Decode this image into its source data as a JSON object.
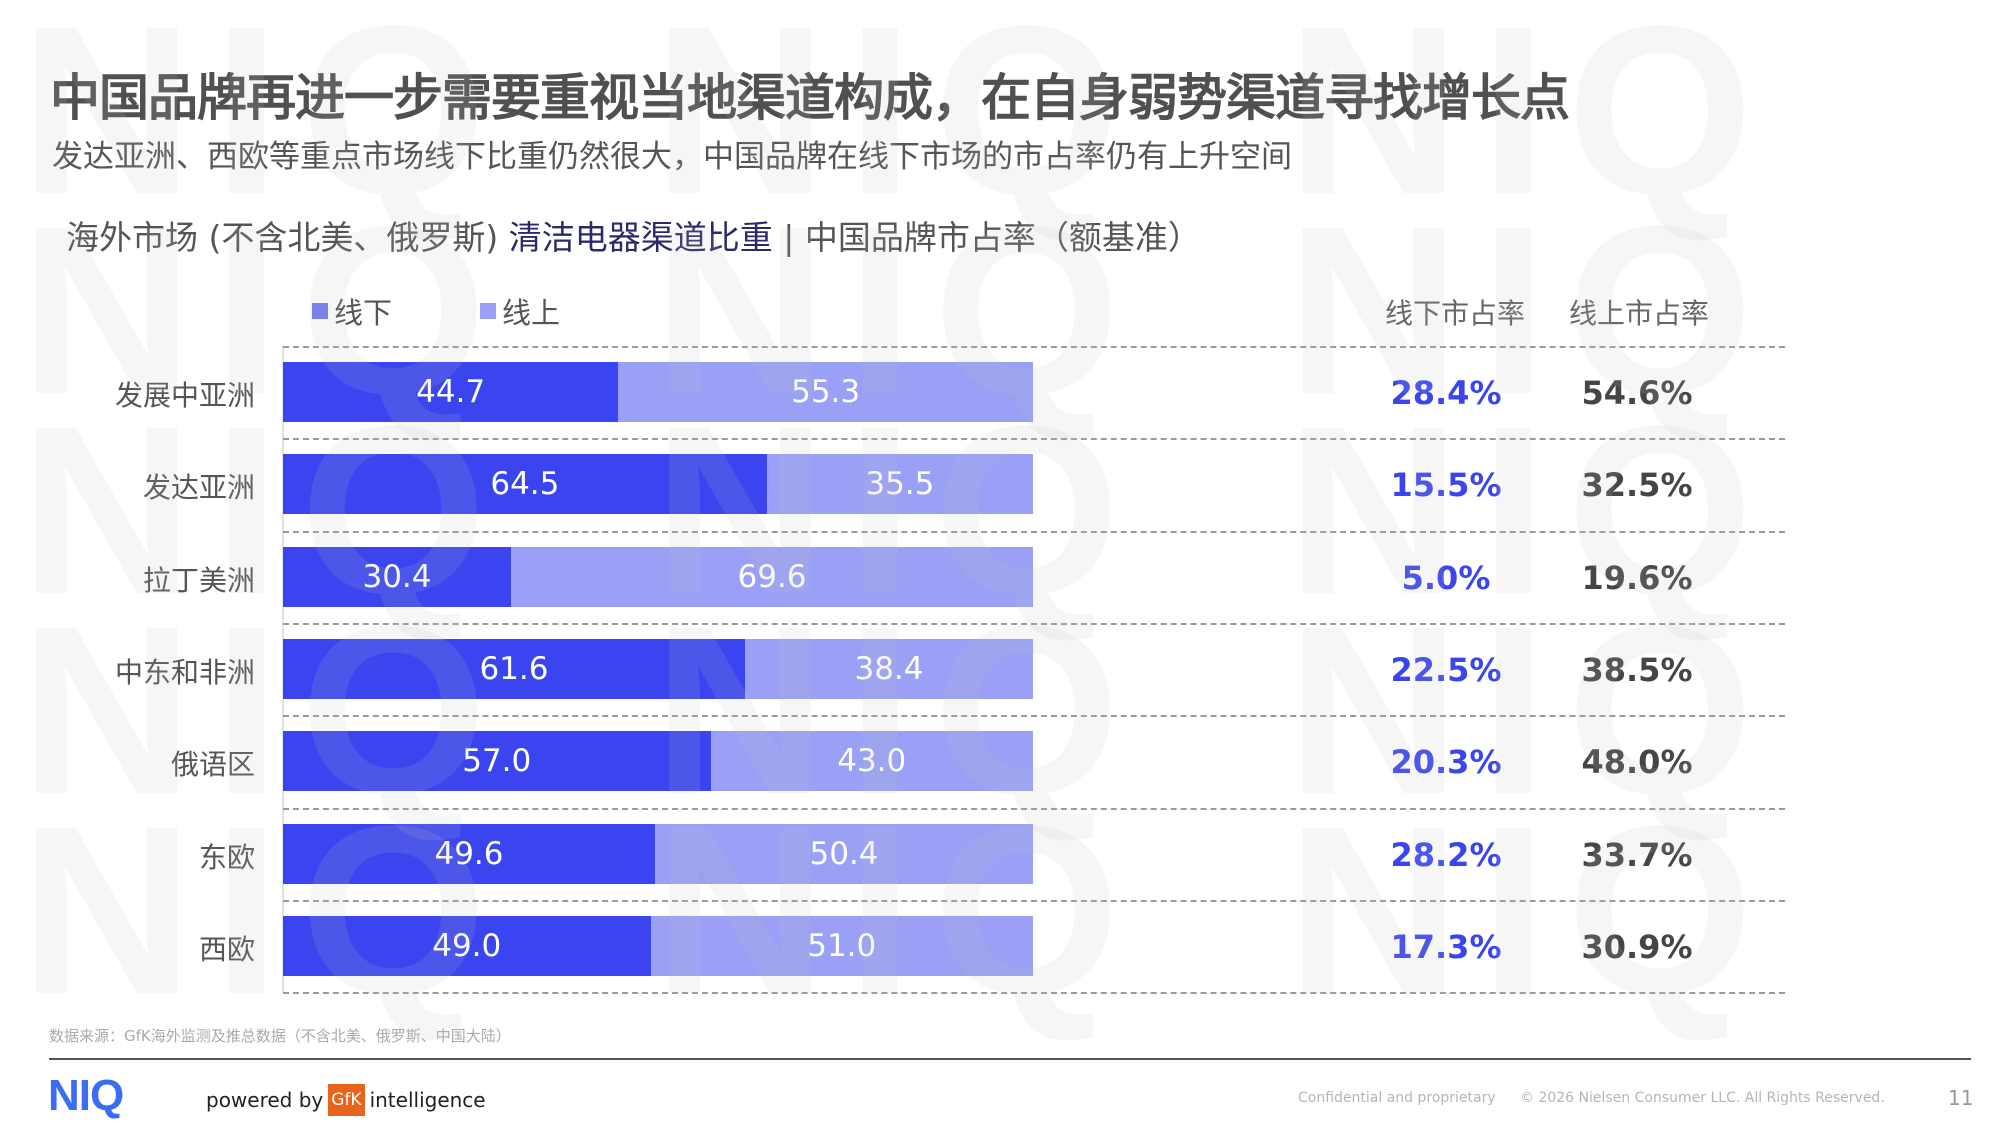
{
  "title": "中国品牌再进一步需要重视当地渠道构成，在自身弱势渠道寻找增长点",
  "subtitle": "发达亚洲、西欧等重点市场线下比重仍然很大，中国品牌在线下市场的市占率仍有上升空间",
  "chart_heading": {
    "part1": "海外市场 (不含北美、俄罗斯) ",
    "part2": "清洁电器渠道比重",
    "part3": " | 中国品牌市占率（额基准）"
  },
  "colors": {
    "offline": "#3a45ef",
    "online": "#9aa0f5",
    "offline_pct": "#3a45ef",
    "online_pct": "#454545"
  },
  "chart_data": {
    "type": "bar",
    "orientation": "horizontal",
    "stacked": true,
    "legend_position": "top-left",
    "categories": [
      "发展中亚洲",
      "发达亚洲",
      "拉丁美洲",
      "中东和非洲",
      "俄语区",
      "东欧",
      "西欧"
    ],
    "series": [
      {
        "name": "线下",
        "values": [
          "44.7",
          "64.5",
          "30.4",
          "61.6",
          "57.0",
          "49.6",
          "49.0"
        ]
      },
      {
        "name": "线上",
        "values": [
          "55.3",
          "35.5",
          "69.6",
          "38.4",
          "43.0",
          "50.4",
          "51.0"
        ]
      }
    ],
    "xlim": [
      0,
      100
    ],
    "table": {
      "headers": [
        "线下市占率",
        "线上市占率"
      ],
      "offline_share": [
        "28.4%",
        "15.5%",
        "5.0%",
        "22.5%",
        "20.3%",
        "28.2%",
        "17.3%"
      ],
      "online_share": [
        "54.6%",
        "32.5%",
        "19.6%",
        "38.5%",
        "48.0%",
        "33.7%",
        "30.9%"
      ]
    }
  },
  "source": "数据来源：GfK海外监测及推总数据（不含北美、俄罗斯、中国大陆）",
  "footer": {
    "logo": "NIQ",
    "powered_by": "powered by",
    "gfk": "GfK",
    "intelligence": "intelligence",
    "confidential": "Confidential and proprietary",
    "copyright": "© 2026 Nielsen Consumer LLC. All Rights Reserved.",
    "page": "11"
  },
  "watermark": "NIQ"
}
